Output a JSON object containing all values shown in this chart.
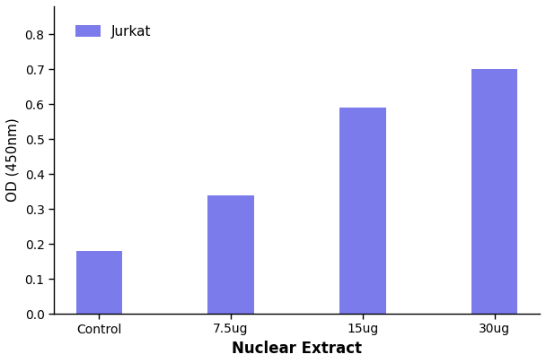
{
  "categories": [
    "Control",
    "7.5ug",
    "15ug",
    "30ug"
  ],
  "values": [
    0.18,
    0.34,
    0.59,
    0.7
  ],
  "bar_color": "#7b7bec",
  "legend_label": "Jurkat",
  "xlabel": "Nuclear Extract",
  "ylabel": "OD (450nm)",
  "ylim": [
    0.0,
    0.88
  ],
  "yticks": [
    0.0,
    0.1,
    0.2,
    0.3,
    0.4,
    0.5,
    0.6,
    0.7,
    0.8
  ],
  "background_color": "#ffffff",
  "bar_width": 0.35,
  "xlabel_fontsize": 12,
  "ylabel_fontsize": 11,
  "tick_fontsize": 10,
  "legend_fontsize": 11,
  "spine_color": "#000000",
  "tick_color": "#000000",
  "label_color": "#000000"
}
